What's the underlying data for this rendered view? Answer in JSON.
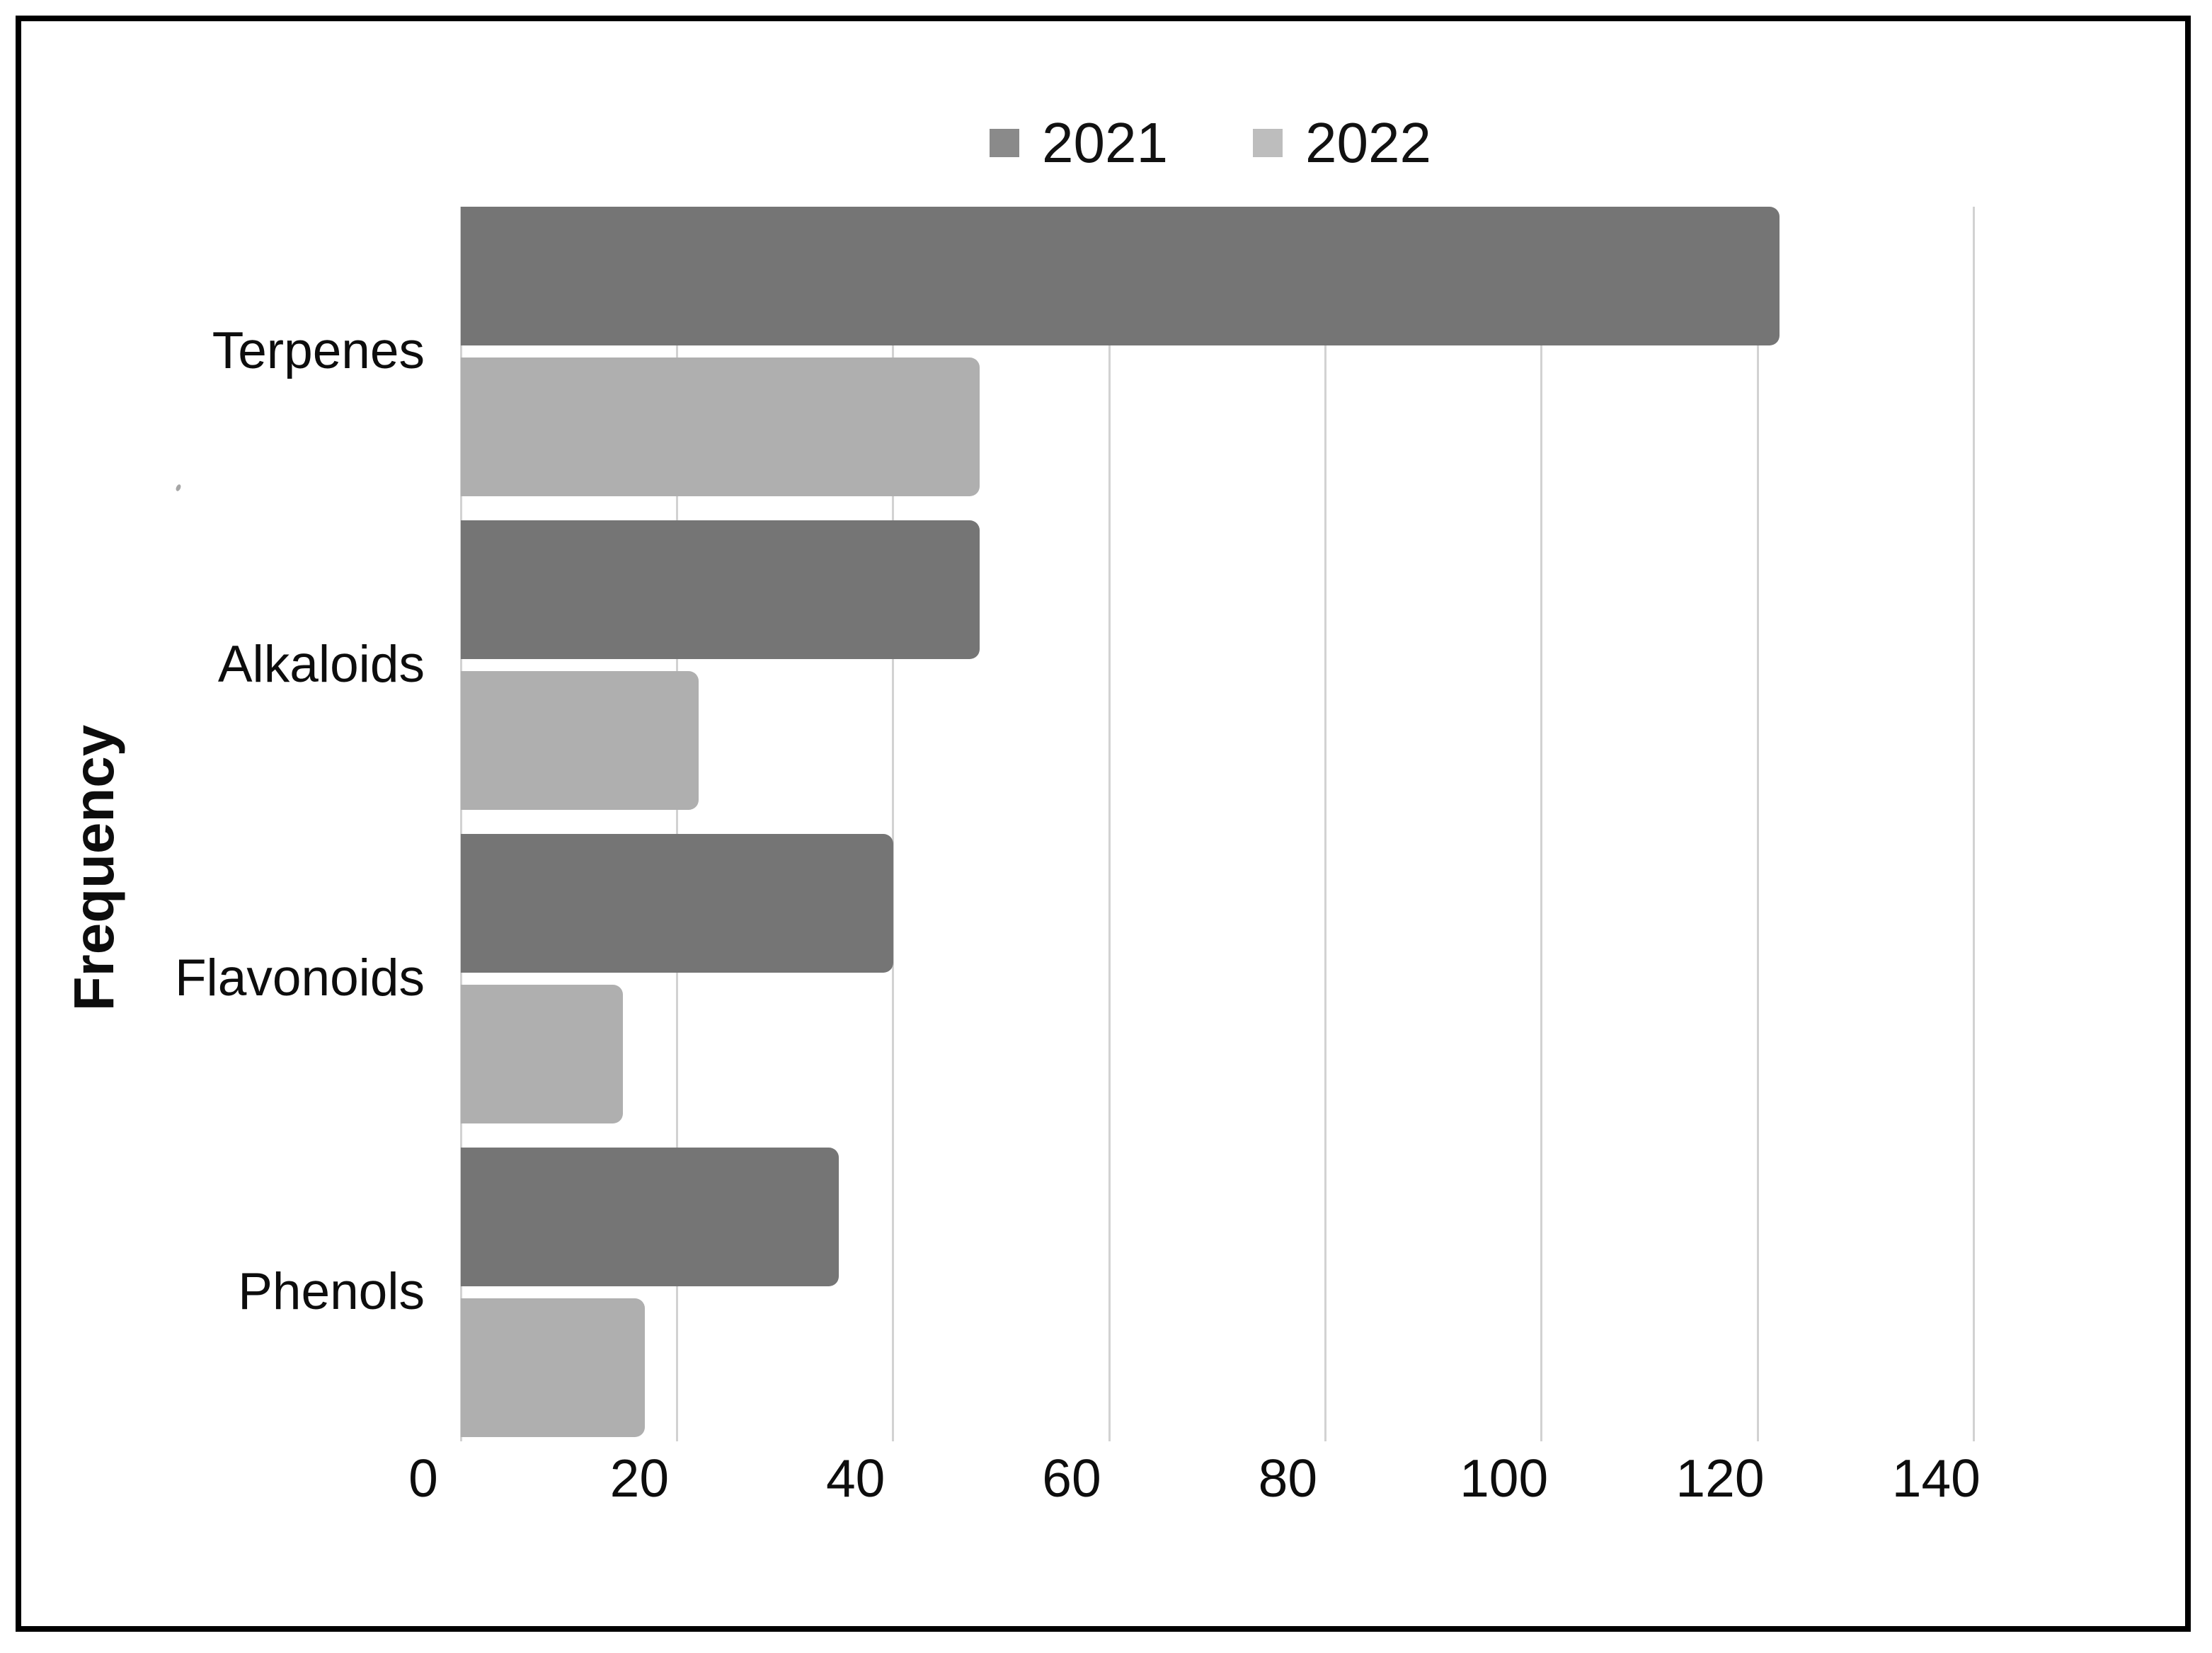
{
  "chart_data": {
    "type": "bar",
    "orientation": "horizontal",
    "title": "",
    "xlabel": "",
    "ylabel": "Frequency",
    "categories": [
      "Terpenes",
      "Alkaloids",
      "Flavonoids",
      "Phenols"
    ],
    "series": [
      {
        "name": "2021",
        "color": "#757575",
        "values": [
          122,
          48,
          40,
          35
        ]
      },
      {
        "name": "2022",
        "color": "#afafaf",
        "values": [
          48,
          22,
          15,
          17
        ]
      }
    ],
    "xlim": [
      0,
      150
    ],
    "xticks": [
      0,
      20,
      40,
      60,
      80,
      100,
      120,
      140
    ],
    "grid": "vertical-gridlines-only",
    "gridline_color": "#d2d2d2",
    "legend_position": "top-center",
    "legend_swatch_colors": [
      "#8a8a8a",
      "#bdbdbd"
    ],
    "axis_text_color": "#0d0d0d",
    "frame_border_color": "#000000",
    "background": "#ffffff"
  }
}
